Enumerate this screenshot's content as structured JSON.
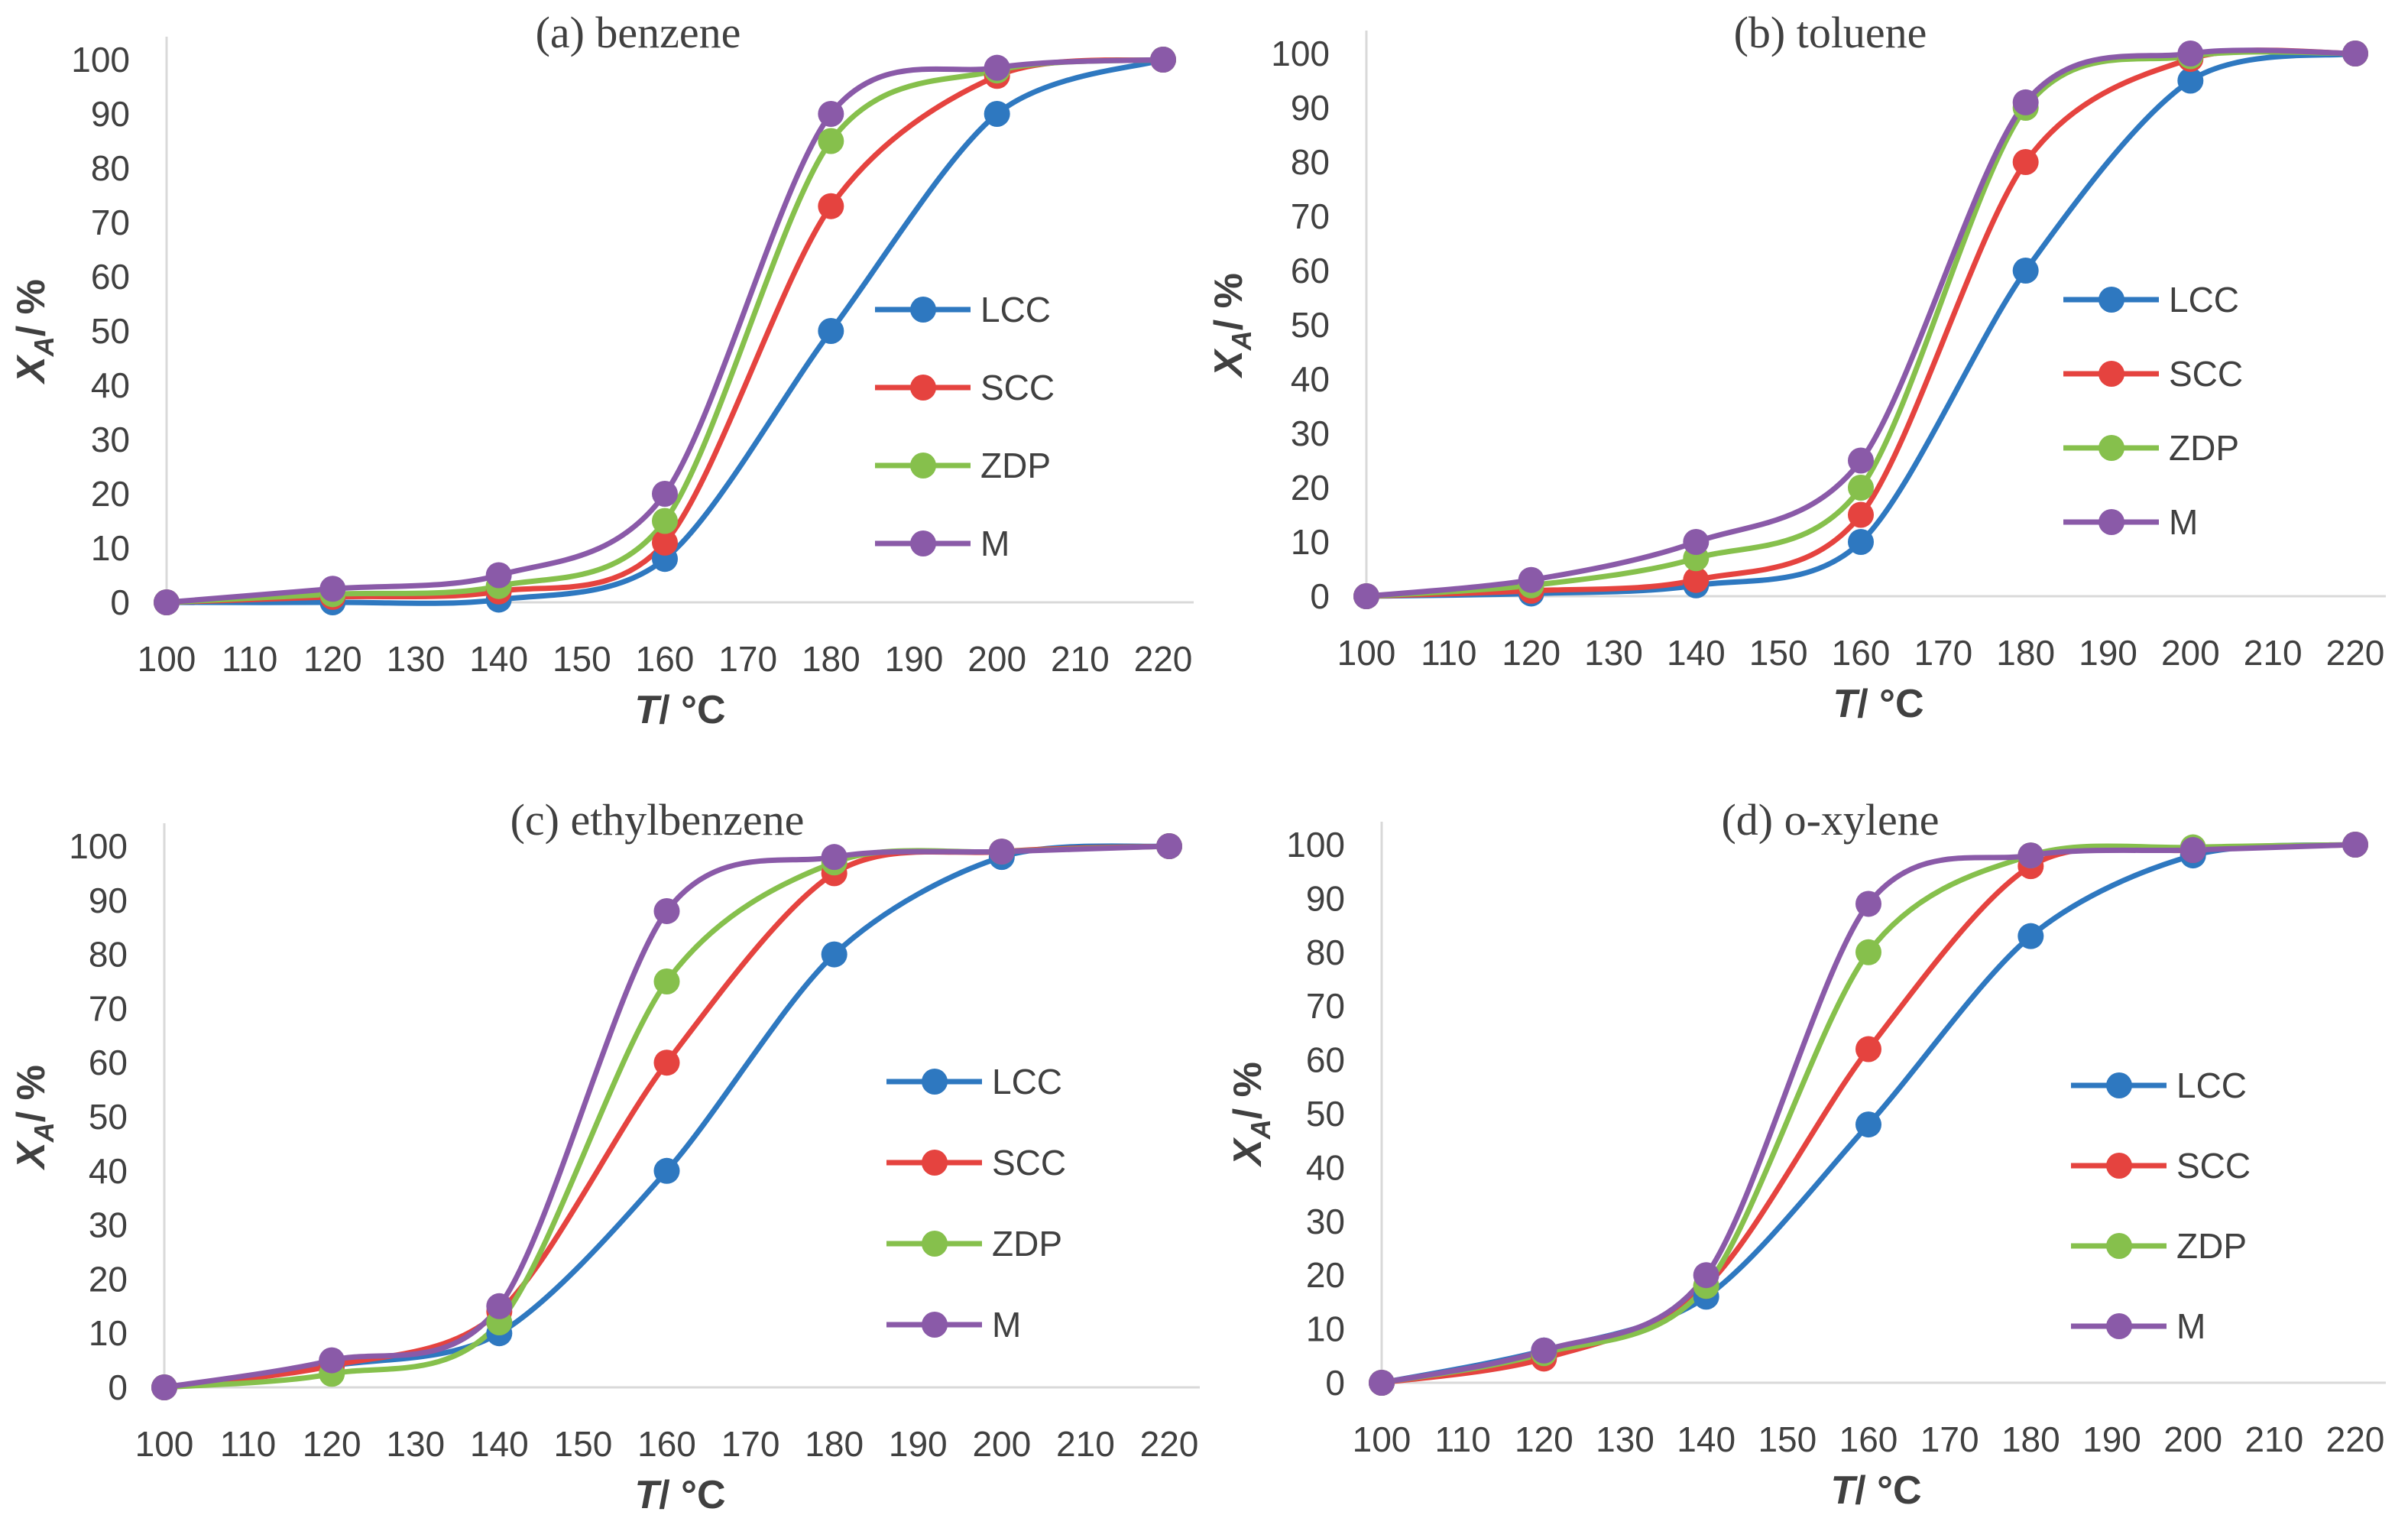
{
  "figure": {
    "series_colors": {
      "LCC": "#2E78C0",
      "SCC": "#E5433F",
      "ZDP": "#86C04C",
      "M": "#8A5AA8"
    }
  },
  "chart_data": [
    {
      "type": "line",
      "title": "(a) benzene",
      "xlabel_main": "T",
      "xlabel_rest": "/ °C",
      "ylabel_main": "X",
      "ylabel_sub": "A",
      "ylabel_rest": "/ %",
      "xlim": [
        100,
        220
      ],
      "ylim": [
        0,
        100
      ],
      "xticks": [
        100,
        110,
        120,
        130,
        140,
        150,
        160,
        170,
        180,
        190,
        200,
        210,
        220
      ],
      "yticks": [
        0,
        10,
        20,
        30,
        40,
        50,
        60,
        70,
        80,
        90,
        100
      ],
      "x": [
        100,
        120,
        140,
        160,
        180,
        200,
        220
      ],
      "series": [
        {
          "name": "LCC",
          "values": [
            0,
            0,
            0.5,
            8,
            50,
            90,
            100
          ]
        },
        {
          "name": "SCC",
          "values": [
            0,
            1,
            2,
            11,
            73,
            97,
            100
          ]
        },
        {
          "name": "ZDP",
          "values": [
            0,
            1.5,
            3,
            15,
            85,
            98,
            100
          ]
        },
        {
          "name": "M",
          "values": [
            0,
            2.5,
            5,
            20,
            90,
            98.5,
            100
          ]
        }
      ]
    },
    {
      "type": "line",
      "title": "(b) toluene",
      "xlabel_main": "T",
      "xlabel_rest": "/ °C",
      "ylabel_main": "X",
      "ylabel_sub": "A",
      "ylabel_rest": "/ %",
      "xlim": [
        100,
        220
      ],
      "ylim": [
        0,
        100
      ],
      "xticks": [
        100,
        110,
        120,
        130,
        140,
        150,
        160,
        170,
        180,
        190,
        200,
        210,
        220
      ],
      "yticks": [
        0,
        10,
        20,
        30,
        40,
        50,
        60,
        70,
        80,
        90,
        100
      ],
      "x": [
        100,
        120,
        140,
        160,
        180,
        200,
        220
      ],
      "series": [
        {
          "name": "LCC",
          "values": [
            0,
            0.5,
            2,
            10,
            60,
            95,
            100
          ]
        },
        {
          "name": "SCC",
          "values": [
            0,
            1,
            3,
            15,
            80,
            99,
            100
          ]
        },
        {
          "name": "ZDP",
          "values": [
            0,
            2,
            7,
            20,
            90,
            99.5,
            100
          ]
        },
        {
          "name": "M",
          "values": [
            0,
            3,
            10,
            25,
            91,
            100,
            100
          ]
        }
      ]
    },
    {
      "type": "line",
      "title": "(c) ethylbenzene",
      "xlabel_main": "T",
      "xlabel_rest": "/ °C",
      "ylabel_main": "X",
      "ylabel_sub": "A",
      "ylabel_rest": "/ %",
      "xlim": [
        100,
        220
      ],
      "ylim": [
        0,
        100
      ],
      "xticks": [
        100,
        110,
        120,
        130,
        140,
        150,
        160,
        170,
        180,
        190,
        200,
        210,
        220
      ],
      "yticks": [
        0,
        10,
        20,
        30,
        40,
        50,
        60,
        70,
        80,
        90,
        100
      ],
      "x": [
        100,
        120,
        140,
        160,
        180,
        200,
        220
      ],
      "series": [
        {
          "name": "LCC",
          "values": [
            0,
            4,
            10,
            40,
            80,
            98,
            100
          ]
        },
        {
          "name": "SCC",
          "values": [
            0,
            4,
            14,
            60,
            95,
            99,
            100
          ]
        },
        {
          "name": "ZDP",
          "values": [
            0,
            2.5,
            12,
            75,
            97,
            99,
            100
          ]
        },
        {
          "name": "M",
          "values": [
            0,
            5,
            15,
            88,
            98,
            99,
            100
          ]
        }
      ]
    },
    {
      "type": "line",
      "title": "(d) o-xylene",
      "xlabel_main": "T",
      "xlabel_rest": "/ °C",
      "ylabel_main": "X",
      "ylabel_sub": "A",
      "ylabel_rest": "/ %",
      "xlim": [
        100,
        220
      ],
      "ylim": [
        0,
        100
      ],
      "xticks": [
        100,
        110,
        120,
        130,
        140,
        150,
        160,
        170,
        180,
        190,
        200,
        210,
        220
      ],
      "yticks": [
        0,
        10,
        20,
        30,
        40,
        50,
        60,
        70,
        80,
        90,
        100
      ],
      "x": [
        100,
        120,
        140,
        160,
        180,
        200,
        220
      ],
      "series": [
        {
          "name": "LCC",
          "values": [
            0,
            6,
            16,
            48,
            83,
            98,
            100
          ]
        },
        {
          "name": "SCC",
          "values": [
            0,
            4.5,
            18,
            62,
            96,
            99,
            100
          ]
        },
        {
          "name": "ZDP",
          "values": [
            0,
            5.5,
            18,
            80,
            98,
            99.5,
            100
          ]
        },
        {
          "name": "M",
          "values": [
            0,
            6,
            20,
            89,
            98,
            99,
            100
          ]
        }
      ]
    }
  ]
}
